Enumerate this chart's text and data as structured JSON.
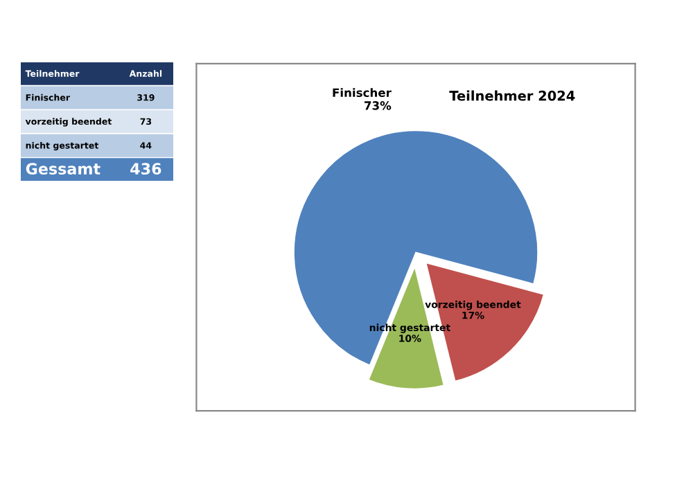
{
  "chart_data": [
    {
      "type": "other",
      "annotations": [
        "Teilnehmer",
        "Anzahl",
        "Finischer",
        "319",
        "vorzeitig beendet",
        "73",
        "nicht gestartet",
        "44",
        "Gessamt",
        "436"
      ]
    },
    {
      "type": "pie",
      "title": "Teilnehmer 2024",
      "categories": [
        "Finischer",
        "vorzeitig beendet",
        "nicht gestartet"
      ],
      "values": [
        73,
        17,
        10
      ],
      "colors": [
        "#4f81bd",
        "#c0504d",
        "#9bbb59"
      ],
      "value_labels": [
        "73%",
        "17%",
        "10%"
      ]
    }
  ]
}
